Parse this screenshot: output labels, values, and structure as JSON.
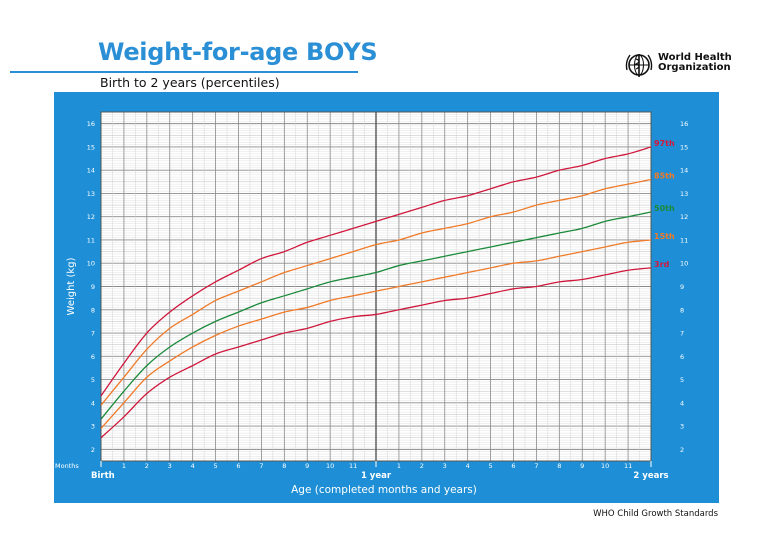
{
  "header": {
    "title": "Weight-for-age BOYS",
    "subtitle": "Birth to 2 years (percentiles)",
    "org_line1": "World Health",
    "org_line2": "Organization"
  },
  "footer": "WHO Child Growth Standards",
  "colors": {
    "brand_blue": "#1e8fd6",
    "p97": "#d0183c",
    "p85": "#f07a28",
    "p50": "#1a8a3a",
    "p15": "#f07a28",
    "p3": "#d0183c"
  },
  "chart_data": {
    "type": "line",
    "title": "Weight-for-age BOYS",
    "subtitle": "Birth to 2 years (percentiles)",
    "xlabel": "Age (completed months and years)",
    "ylabel": "Weight (kg)",
    "x_axis_caption": "Months",
    "xlim": [
      0,
      24
    ],
    "ylim": [
      1.5,
      16.5
    ],
    "y_ticks": [
      2,
      3,
      4,
      5,
      6,
      7,
      8,
      9,
      10,
      11,
      12,
      13,
      14,
      15,
      16
    ],
    "x_tick_labels": [
      {
        "x": 0,
        "label": "Birth"
      },
      {
        "x": 1,
        "label": "1"
      },
      {
        "x": 2,
        "label": "2"
      },
      {
        "x": 3,
        "label": "3"
      },
      {
        "x": 4,
        "label": "4"
      },
      {
        "x": 5,
        "label": "5"
      },
      {
        "x": 6,
        "label": "6"
      },
      {
        "x": 7,
        "label": "7"
      },
      {
        "x": 8,
        "label": "8"
      },
      {
        "x": 9,
        "label": "9"
      },
      {
        "x": 10,
        "label": "10"
      },
      {
        "x": 11,
        "label": "11"
      },
      {
        "x": 12,
        "label": "1 year"
      },
      {
        "x": 13,
        "label": "1"
      },
      {
        "x": 14,
        "label": "2"
      },
      {
        "x": 15,
        "label": "3"
      },
      {
        "x": 16,
        "label": "4"
      },
      {
        "x": 17,
        "label": "5"
      },
      {
        "x": 18,
        "label": "6"
      },
      {
        "x": 19,
        "label": "7"
      },
      {
        "x": 20,
        "label": "8"
      },
      {
        "x": 21,
        "label": "9"
      },
      {
        "x": 22,
        "label": "10"
      },
      {
        "x": 23,
        "label": "11"
      },
      {
        "x": 24,
        "label": "2 years"
      }
    ],
    "grid": true,
    "x": [
      0,
      1,
      2,
      3,
      4,
      5,
      6,
      7,
      8,
      9,
      10,
      11,
      12,
      13,
      14,
      15,
      16,
      17,
      18,
      19,
      20,
      21,
      22,
      23,
      24
    ],
    "series": [
      {
        "name": "97th",
        "color": "#d0183c",
        "values": [
          4.3,
          5.7,
          7.0,
          7.9,
          8.6,
          9.2,
          9.7,
          10.2,
          10.5,
          10.9,
          11.2,
          11.5,
          11.8,
          12.1,
          12.4,
          12.7,
          12.9,
          13.2,
          13.5,
          13.7,
          14.0,
          14.2,
          14.5,
          14.7,
          15.0
        ]
      },
      {
        "name": "85th",
        "color": "#f07a28",
        "values": [
          3.9,
          5.1,
          6.3,
          7.2,
          7.8,
          8.4,
          8.8,
          9.2,
          9.6,
          9.9,
          10.2,
          10.5,
          10.8,
          11.0,
          11.3,
          11.5,
          11.7,
          12.0,
          12.2,
          12.5,
          12.7,
          12.9,
          13.2,
          13.4,
          13.6
        ]
      },
      {
        "name": "50th",
        "color": "#1a8a3a",
        "values": [
          3.3,
          4.5,
          5.6,
          6.4,
          7.0,
          7.5,
          7.9,
          8.3,
          8.6,
          8.9,
          9.2,
          9.4,
          9.6,
          9.9,
          10.1,
          10.3,
          10.5,
          10.7,
          10.9,
          11.1,
          11.3,
          11.5,
          11.8,
          12.0,
          12.2
        ]
      },
      {
        "name": "15th",
        "color": "#f07a28",
        "values": [
          2.9,
          4.0,
          5.1,
          5.8,
          6.4,
          6.9,
          7.3,
          7.6,
          7.9,
          8.1,
          8.4,
          8.6,
          8.8,
          9.0,
          9.2,
          9.4,
          9.6,
          9.8,
          10.0,
          10.1,
          10.3,
          10.5,
          10.7,
          10.9,
          11.0
        ]
      },
      {
        "name": "3rd",
        "color": "#d0183c",
        "values": [
          2.5,
          3.4,
          4.4,
          5.1,
          5.6,
          6.1,
          6.4,
          6.7,
          7.0,
          7.2,
          7.5,
          7.7,
          7.8,
          8.0,
          8.2,
          8.4,
          8.5,
          8.7,
          8.9,
          9.0,
          9.2,
          9.3,
          9.5,
          9.7,
          9.8
        ]
      }
    ]
  }
}
